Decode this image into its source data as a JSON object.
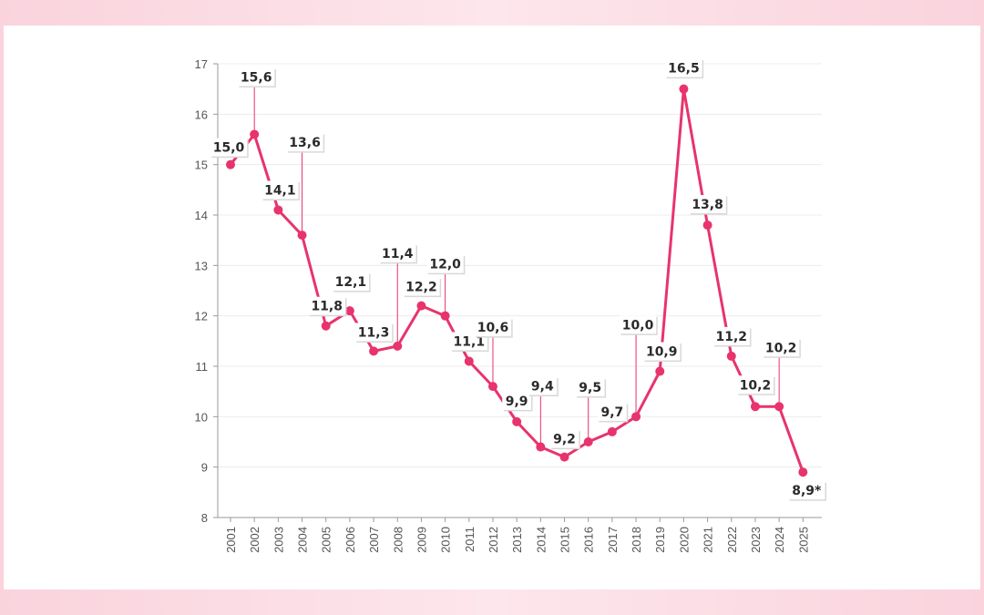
{
  "chart_data": {
    "type": "line",
    "title": "",
    "xlabel": "",
    "ylabel": "",
    "ylim": [
      8,
      17
    ],
    "yticks": [
      "8",
      "9",
      "10",
      "11",
      "12",
      "13",
      "14",
      "15",
      "16",
      "17"
    ],
    "categories": [
      "2001",
      "2002",
      "2003",
      "2004",
      "2005",
      "2006",
      "2007",
      "2008",
      "2009",
      "2010",
      "2011",
      "2012",
      "2013",
      "2014",
      "2015",
      "2016",
      "2017",
      "2018",
      "2019",
      "2020",
      "2021",
      "2022",
      "2023",
      "2024",
      "2025"
    ],
    "values": [
      15.0,
      15.6,
      14.1,
      13.6,
      11.8,
      12.1,
      11.3,
      11.4,
      12.2,
      12.0,
      11.1,
      10.6,
      9.9,
      9.4,
      9.2,
      9.5,
      9.7,
      10.0,
      10.9,
      16.5,
      13.8,
      11.2,
      10.2,
      10.2,
      8.9
    ],
    "labels": [
      "15,0",
      "15,6",
      "14,1",
      "13,6",
      "11,8",
      "12,1",
      "11,3",
      "11,4",
      "12,2",
      "12,0",
      "11,1",
      "10,6",
      "9,9",
      "9,4",
      "9,2",
      "9,5",
      "9,7",
      "10,0",
      "10,9",
      "16,5",
      "13,8",
      "11,2",
      "10,2",
      "10,2",
      "8,9*"
    ],
    "grid": true,
    "series_color": "#e8336d"
  }
}
